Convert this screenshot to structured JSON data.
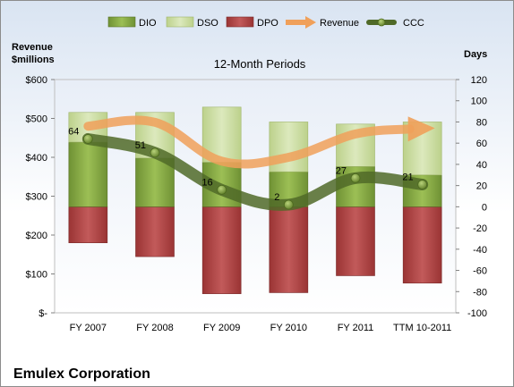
{
  "chart_data": {
    "type": "bar",
    "title": "12-Month Periods",
    "company": "Emulex Corporation",
    "left_axis_label_line1": "Revenue",
    "left_axis_label_line2": "$millions",
    "right_axis_label": "Days",
    "categories": [
      "FY 2007",
      "FY 2008",
      "FY 2009",
      "FY 2010",
      "FY 2011",
      "TTM 10-2011"
    ],
    "left_axis": {
      "min": 0,
      "max": 600,
      "step": 100,
      "tick_labels": [
        "$-",
        "$100",
        "$200",
        "$300",
        "$400",
        "$500",
        "$600"
      ]
    },
    "right_axis": {
      "min": -100,
      "max": 120,
      "step": 20,
      "tick_labels": [
        "-100",
        "-80",
        "-60",
        "-40",
        "-20",
        "0",
        "20",
        "40",
        "60",
        "80",
        "100",
        "120"
      ]
    },
    "series": [
      {
        "name": "DIO",
        "axis": "right",
        "kind": "bar-stack-positive",
        "color": "#86a843",
        "values": [
          61,
          46,
          42,
          33,
          38,
          30
        ]
      },
      {
        "name": "DSO",
        "axis": "right",
        "kind": "bar-stack-positive",
        "color": "#cfdfa8",
        "values": [
          28,
          43,
          52,
          47,
          40,
          50
        ]
      },
      {
        "name": "DPO",
        "axis": "right",
        "kind": "bar-negative",
        "color": "#b24b4b",
        "values": [
          -34,
          -47,
          -82,
          -81,
          -65,
          -72
        ]
      },
      {
        "name": "Revenue",
        "axis": "left",
        "kind": "line-arrow",
        "color": "#f0a05a",
        "values": [
          480,
          490,
          390,
          400,
          460,
          475
        ]
      },
      {
        "name": "CCC",
        "axis": "right",
        "kind": "line-markers",
        "color": "#506a28",
        "values": [
          64,
          51,
          16,
          2,
          27,
          21
        ],
        "data_labels": [
          "64",
          "51",
          "16",
          "2",
          "27",
          "21"
        ]
      }
    ],
    "legend_position": "top",
    "gridlines": false
  }
}
